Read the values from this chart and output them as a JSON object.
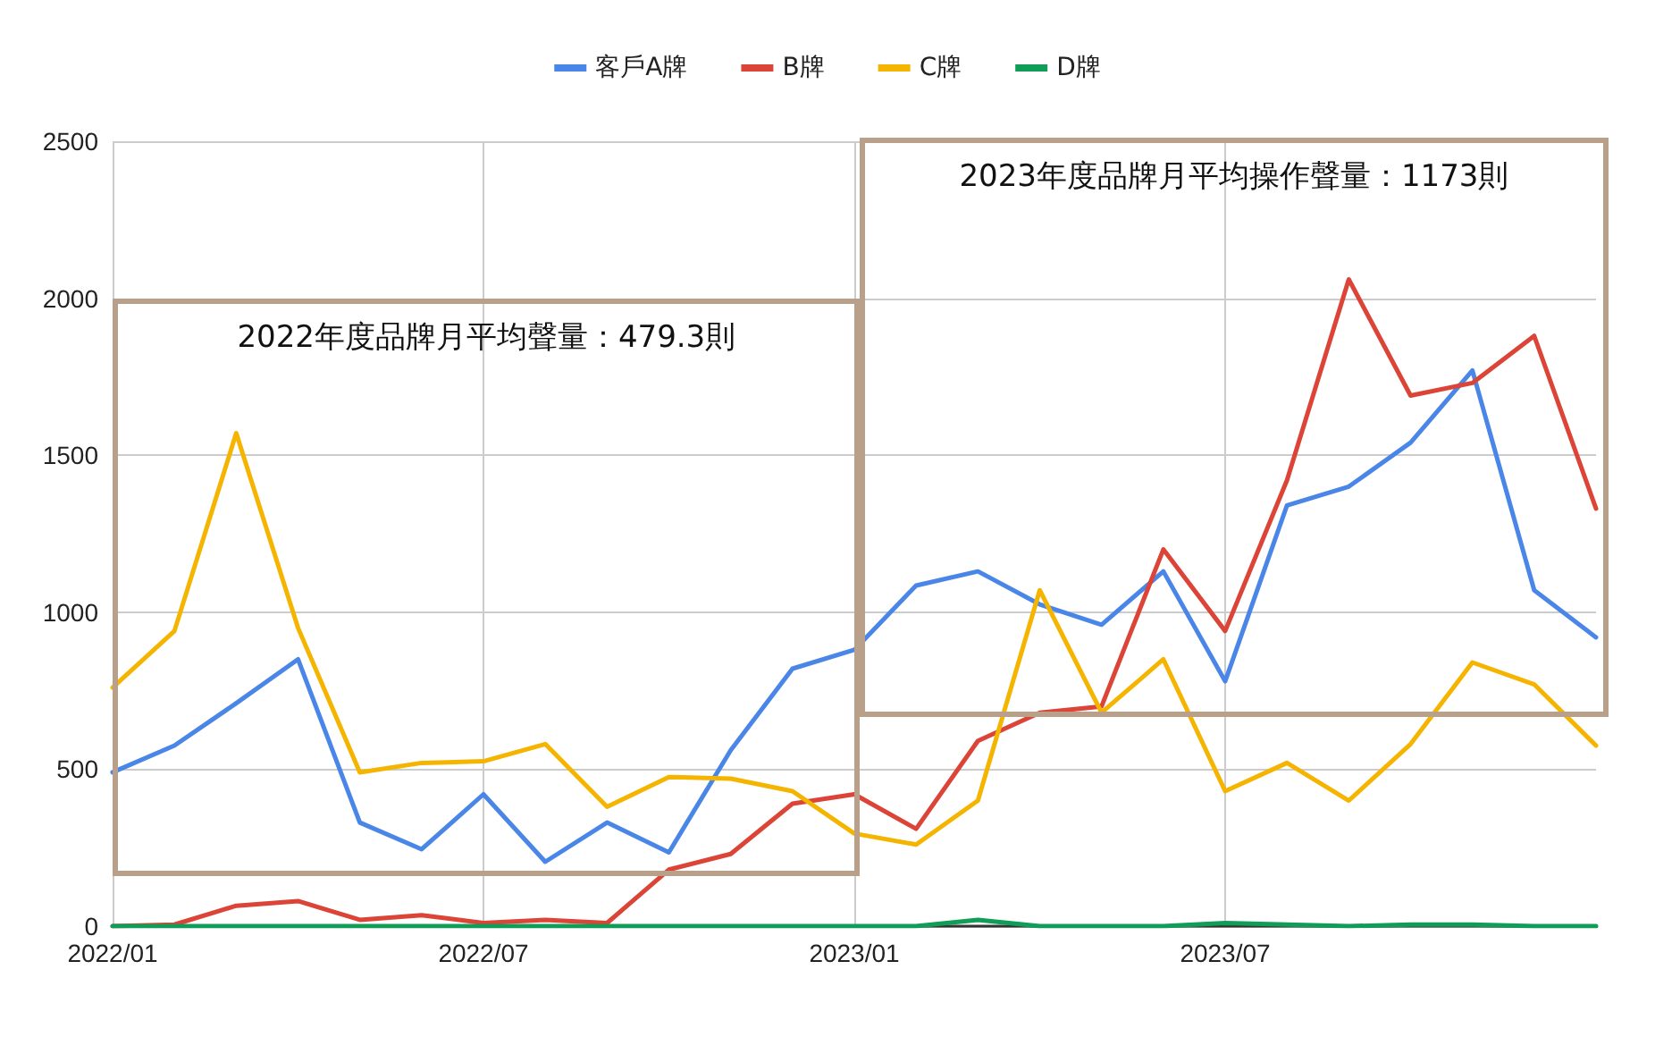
{
  "chart_data": {
    "type": "line",
    "categories": [
      "2022/01",
      null,
      null,
      null,
      null,
      null,
      "2022/07",
      null,
      null,
      null,
      null,
      null,
      "2023/01",
      null,
      null,
      null,
      null,
      null,
      "2023/07",
      null,
      null,
      null,
      null,
      null,
      null
    ],
    "series": [
      {
        "name": "客戶A牌",
        "color": "#4a86e8",
        "values": [
          490,
          575,
          710,
          850,
          330,
          245,
          420,
          205,
          330,
          235,
          560,
          820,
          880,
          1085,
          1130,
          1025,
          960,
          1130,
          780,
          1340,
          1400,
          1540,
          1770,
          1070,
          920
        ]
      },
      {
        "name": "B牌",
        "color": "#db4437",
        "values": [
          0,
          5,
          65,
          80,
          20,
          35,
          10,
          20,
          10,
          180,
          230,
          390,
          420,
          310,
          590,
          680,
          700,
          1200,
          940,
          1420,
          2060,
          1690,
          1730,
          1880,
          1330
        ]
      },
      {
        "name": "C牌",
        "color": "#f4b400",
        "values": [
          760,
          940,
          1570,
          950,
          490,
          520,
          525,
          580,
          380,
          475,
          470,
          430,
          295,
          260,
          400,
          1070,
          680,
          850,
          430,
          520,
          400,
          580,
          840,
          770,
          575
        ]
      },
      {
        "name": "D牌",
        "color": "#0f9d58",
        "values": [
          0,
          0,
          0,
          0,
          0,
          0,
          0,
          0,
          0,
          0,
          0,
          0,
          0,
          0,
          20,
          0,
          0,
          0,
          10,
          5,
          0,
          5,
          5,
          0,
          0
        ]
      }
    ],
    "ylim": [
      0,
      2500
    ],
    "yticks": [
      0,
      500,
      1000,
      1500,
      2000,
      2500
    ],
    "grid": true,
    "legend": "top",
    "marker": "none",
    "line_style": "solid",
    "annotations": [
      "2022年度品牌月平均聲量：479.3則",
      "2023年度品牌月平均操作聲量：1173則"
    ]
  }
}
